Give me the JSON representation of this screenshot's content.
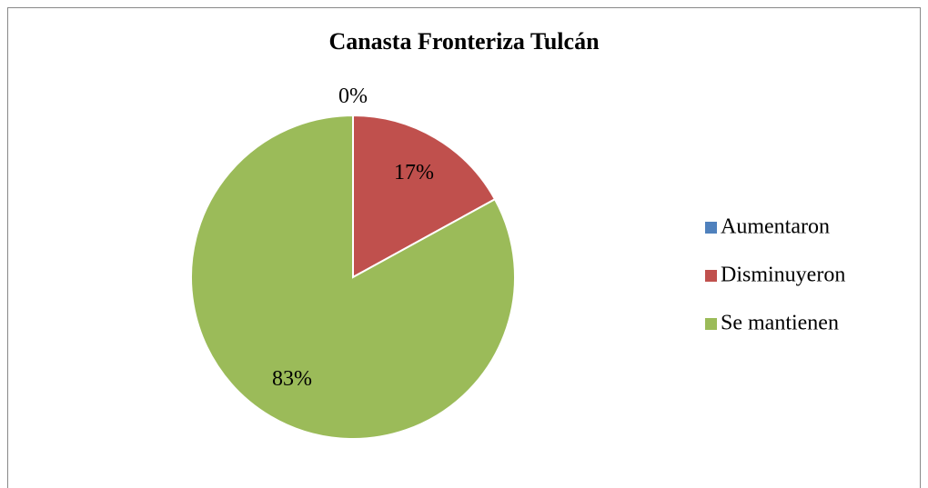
{
  "chart_data": {
    "type": "pie",
    "title": "Canasta Fronteriza Tulcán",
    "categories": [
      "Aumentaron",
      "Disminuyeron",
      "Se mantienen"
    ],
    "values": [
      0,
      17,
      83
    ],
    "value_labels": [
      "0%",
      "17%",
      "83%"
    ],
    "colors": [
      "#4f81bd",
      "#c0504d",
      "#9bbb59"
    ],
    "legend": "right"
  }
}
